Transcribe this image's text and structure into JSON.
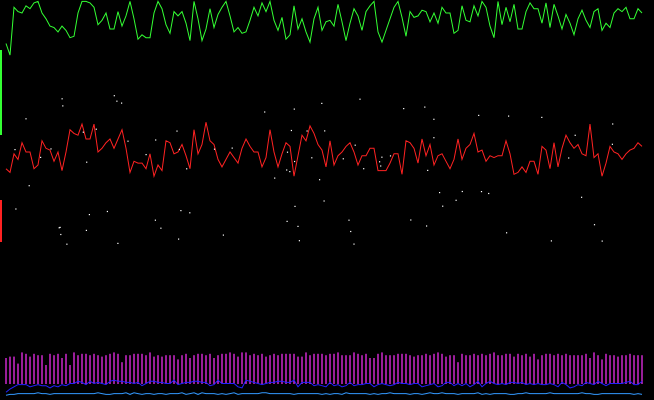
{
  "chart_data": {
    "type": "line",
    "title": "",
    "xlabel": "",
    "ylabel": "",
    "grid": false,
    "legend": "none",
    "background": "#000000",
    "xlim": [
      0,
      640
    ],
    "ylim": [
      0,
      100
    ],
    "series": [
      {
        "color": "#33ff33",
        "step": 4,
        "values": [
          70,
          62,
          95,
          92,
          91,
          96,
          94,
          98,
          99,
          91,
          87,
          82,
          81,
          78,
          82,
          79,
          74,
          75,
          91,
          99,
          99,
          98,
          95,
          83,
          86,
          91,
          80,
          80,
          92,
          82,
          89,
          99,
          87,
          73,
          76,
          74,
          74,
          91,
          99,
          94,
          83,
          77,
          92,
          89,
          92,
          84,
          72,
          99,
          87,
          72,
          80,
          94,
          81,
          90,
          95,
          99,
          89,
          78,
          81,
          77,
          78,
          86,
          95,
          89,
          98,
          92,
          99,
          86,
          79,
          88,
          73,
          76,
          96,
          80,
          87,
          78,
          71,
          87,
          95,
          79,
          85,
          86,
          82,
          97,
          85,
          72,
          84,
          94,
          89,
          79,
          92,
          96,
          99,
          78,
          71,
          79,
          87,
          95,
          99,
          88,
          75,
          92,
          88,
          89,
          93,
          92,
          85,
          91,
          84,
          95,
          91,
          91,
          77,
          79,
          96,
          86,
          85,
          96,
          89,
          99,
          95,
          82,
          74,
          99,
          83,
          95,
          85,
          97,
          80,
          80,
          92,
          98,
          94,
          94,
          84,
          98,
          81,
          97,
          89,
          80,
          90,
          84,
          76,
          87,
          93,
          86,
          81,
          92,
          94,
          79,
          84,
          81,
          91,
          94,
          92,
          95,
          87,
          87,
          94,
          91
        ]
      },
      {
        "color": "#ff2222",
        "step": 4,
        "values": [
          48,
          46,
          56,
          53,
          62,
          57,
          57,
          48,
          50,
          63,
          59,
          58,
          52,
          57,
          47,
          57,
          69,
          67,
          66,
          72,
          64,
          64,
          72,
          57,
          59,
          62,
          64,
          59,
          64,
          69,
          59,
          46,
          52,
          51,
          51,
          48,
          56,
          44,
          50,
          47,
          63,
          62,
          56,
          57,
          61,
          55,
          48,
          69,
          56,
          61,
          73,
          63,
          61,
          53,
          49,
          53,
          57,
          54,
          51,
          59,
          64,
          60,
          57,
          57,
          49,
          54,
          69,
          57,
          49,
          56,
          62,
          60,
          44,
          55,
          66,
          63,
          71,
          67,
          61,
          58,
          49,
          63,
          50,
          55,
          57,
          60,
          62,
          57,
          50,
          55,
          55,
          59,
          59,
          47,
          47,
          47,
          51,
          56,
          56,
          45,
          63,
          62,
          59,
          51,
          64,
          55,
          61,
          50,
          55,
          56,
          52,
          48,
          53,
          64,
          53,
          59,
          61,
          67,
          57,
          58,
          52,
          55,
          54,
          55,
          55,
          63,
          56,
          45,
          46,
          49,
          46,
          52,
          52,
          45,
          60,
          58,
          48,
          62,
          49,
          59,
          66,
          62,
          59,
          61,
          56,
          55,
          72,
          54,
          56,
          44,
          51,
          60,
          57,
          56,
          53,
          56,
          58,
          59,
          62,
          60
        ]
      },
      {
        "color": "#ff33ff",
        "bars": true,
        "step": 4,
        "values": [
          30,
          31,
          31,
          26,
          34,
          33,
          31,
          33,
          32,
          32,
          25,
          33,
          32,
          33,
          30,
          33,
          25,
          34,
          32,
          33,
          33,
          32,
          33,
          32,
          31,
          32,
          33,
          34,
          33,
          27,
          32,
          32,
          33,
          33,
          33,
          32,
          34,
          31,
          32,
          31,
          32,
          32,
          32,
          29,
          32,
          33,
          30,
          32,
          33,
          33,
          32,
          33,
          30,
          32,
          33,
          33,
          34,
          33,
          31,
          34,
          34,
          32,
          33,
          32,
          33,
          31,
          32,
          33,
          32,
          33,
          33,
          33,
          33,
          31,
          31,
          34,
          32,
          33,
          33,
          33,
          32,
          33,
          33,
          34,
          32,
          32,
          32,
          34,
          33,
          32,
          33,
          30,
          30,
          33,
          34,
          32,
          32,
          32,
          33,
          33,
          33,
          32,
          31,
          32,
          32,
          33,
          32,
          33,
          34,
          33,
          31,
          32,
          32,
          27,
          33,
          32,
          32,
          33,
          32,
          33,
          32,
          33,
          34,
          32,
          32,
          33,
          33,
          31,
          33,
          32,
          33,
          31,
          33,
          29,
          32,
          33,
          33,
          32,
          33,
          32,
          33,
          32,
          32,
          32,
          32,
          33,
          30,
          34,
          32,
          29,
          33,
          32,
          32,
          31,
          32,
          32,
          33,
          32,
          32,
          32
        ]
      },
      {
        "color": "#2222ff",
        "step": 4,
        "values": [
          7,
          10,
          12,
          14,
          14,
          14,
          12,
          13,
          14,
          13,
          13,
          11,
          13,
          12,
          14,
          13,
          15,
          15,
          17,
          16,
          14,
          17,
          15,
          16,
          15,
          14,
          17,
          18,
          17,
          17,
          16,
          16,
          15,
          16,
          13,
          15,
          17,
          17,
          16,
          16,
          15,
          15,
          18,
          14,
          15,
          16,
          16,
          17,
          17,
          16,
          16,
          13,
          14,
          18,
          15,
          15,
          15,
          15,
          12,
          11,
          18,
          17,
          16,
          15,
          14,
          15,
          16,
          16,
          17,
          17,
          16,
          16,
          18,
          12,
          16,
          16,
          16,
          13,
          14,
          13,
          12,
          16,
          13,
          14,
          12,
          13,
          16,
          13,
          14,
          14,
          15,
          15,
          12,
          14,
          15,
          14,
          13,
          14,
          16,
          15,
          15,
          14,
          15,
          15,
          12,
          13,
          14,
          15,
          12,
          13,
          16,
          16,
          13,
          15,
          13,
          15,
          12,
          14,
          17,
          12,
          15,
          17,
          15,
          14,
          15,
          14,
          16,
          16,
          15,
          16,
          14,
          15,
          14,
          15,
          14,
          14,
          15,
          14,
          12,
          16,
          14,
          11,
          12,
          14,
          13,
          16,
          15,
          14,
          17,
          15,
          13,
          15,
          15,
          15,
          15,
          16,
          17,
          14,
          14,
          17
        ]
      },
      {
        "color": "#3399ff",
        "step": 4,
        "values": [
          6,
          7,
          7,
          8,
          8,
          8,
          8,
          8,
          9,
          8,
          8,
          7,
          8,
          8,
          8,
          8,
          8,
          8,
          8,
          8,
          8,
          8,
          8,
          9,
          8,
          7,
          7,
          8,
          8,
          8,
          9,
          7,
          9,
          8,
          7,
          8,
          8,
          7,
          8,
          8,
          7,
          8,
          8,
          8,
          9,
          7,
          8,
          9,
          7,
          9,
          8,
          8,
          8,
          7,
          8,
          7,
          8,
          9,
          7,
          8,
          8,
          8,
          8,
          8,
          9,
          9,
          8,
          8,
          8,
          8,
          8,
          8,
          7,
          8,
          8,
          8,
          8,
          8,
          8,
          7,
          8,
          7,
          8,
          8,
          7,
          9,
          8,
          8,
          8,
          8,
          8,
          7,
          8,
          7,
          8,
          8,
          9,
          8,
          8,
          8,
          8,
          7,
          8,
          8,
          7,
          8,
          9,
          8,
          8,
          9,
          8,
          8,
          8,
          7,
          8,
          8,
          8,
          8,
          9,
          7,
          8,
          7,
          8,
          8,
          8,
          8,
          7,
          7,
          8,
          8,
          9,
          8,
          8,
          8,
          8,
          8,
          9,
          8,
          8,
          8,
          8,
          8,
          8,
          8,
          9,
          8,
          8,
          7,
          7,
          8,
          8,
          8,
          8,
          8,
          8,
          8,
          8,
          7,
          8,
          7
        ]
      }
    ]
  }
}
